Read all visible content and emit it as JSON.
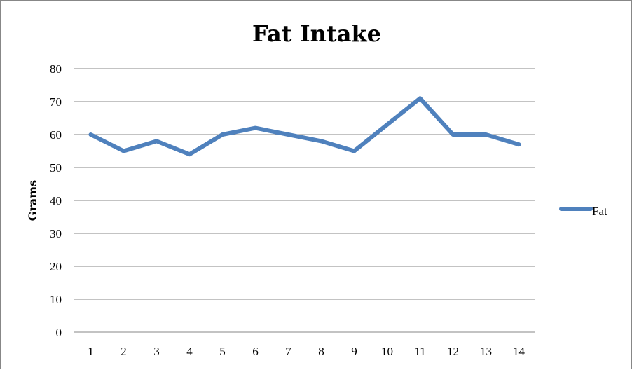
{
  "chart_data": {
    "type": "line",
    "title": "Fat Intake",
    "xlabel": "",
    "ylabel": "Grams",
    "categories": [
      "1",
      "2",
      "3",
      "4",
      "5",
      "6",
      "7",
      "8",
      "9",
      "10",
      "11",
      "12",
      "13",
      "14"
    ],
    "series": [
      {
        "name": "Fat",
        "values": [
          60,
          55,
          58,
          54,
          60,
          62,
          60,
          58,
          55,
          63,
          71,
          60,
          60,
          57
        ],
        "color": "#4F81BD"
      }
    ],
    "ylim": [
      0,
      80
    ],
    "yticks": [
      "0",
      "10",
      "20",
      "30",
      "40",
      "50",
      "60",
      "70",
      "80"
    ],
    "grid": true,
    "legend_position": "right"
  }
}
